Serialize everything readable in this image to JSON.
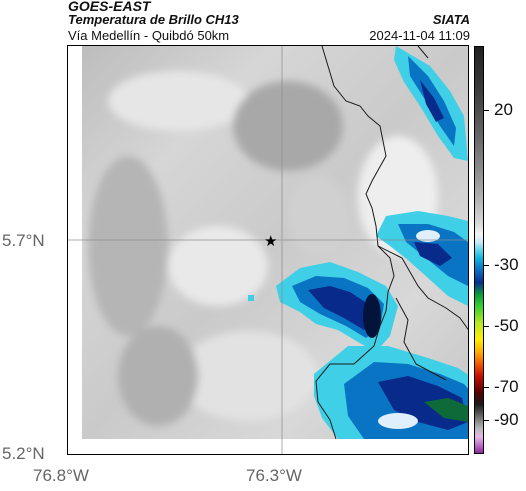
{
  "header": {
    "satellite": "GOES-EAST",
    "product": "Temperatura de Brillo CH13",
    "organization": "SIATA",
    "location": "Vía Medellín - Quibdó 50km",
    "datetime": "2024-11-04 11:09"
  },
  "axes": {
    "lat_labels": [
      "5.7°N",
      "5.2°N"
    ],
    "lon_labels": [
      "76.8°W",
      "76.3°W"
    ]
  },
  "colorbar": {
    "labels": [
      "20",
      "-30",
      "-50",
      "-70",
      "-90"
    ],
    "units_hint": "°C"
  },
  "colors": {
    "cloud_light": "#dfeffb",
    "cloud_cyan": "#3fcfe6",
    "cloud_blue": "#0a74c4",
    "cloud_deep": "#082a8a",
    "ground_gray": "#d4d4d4",
    "border_line": "#1a1a1a"
  },
  "map": {
    "marker": "star-icon"
  }
}
